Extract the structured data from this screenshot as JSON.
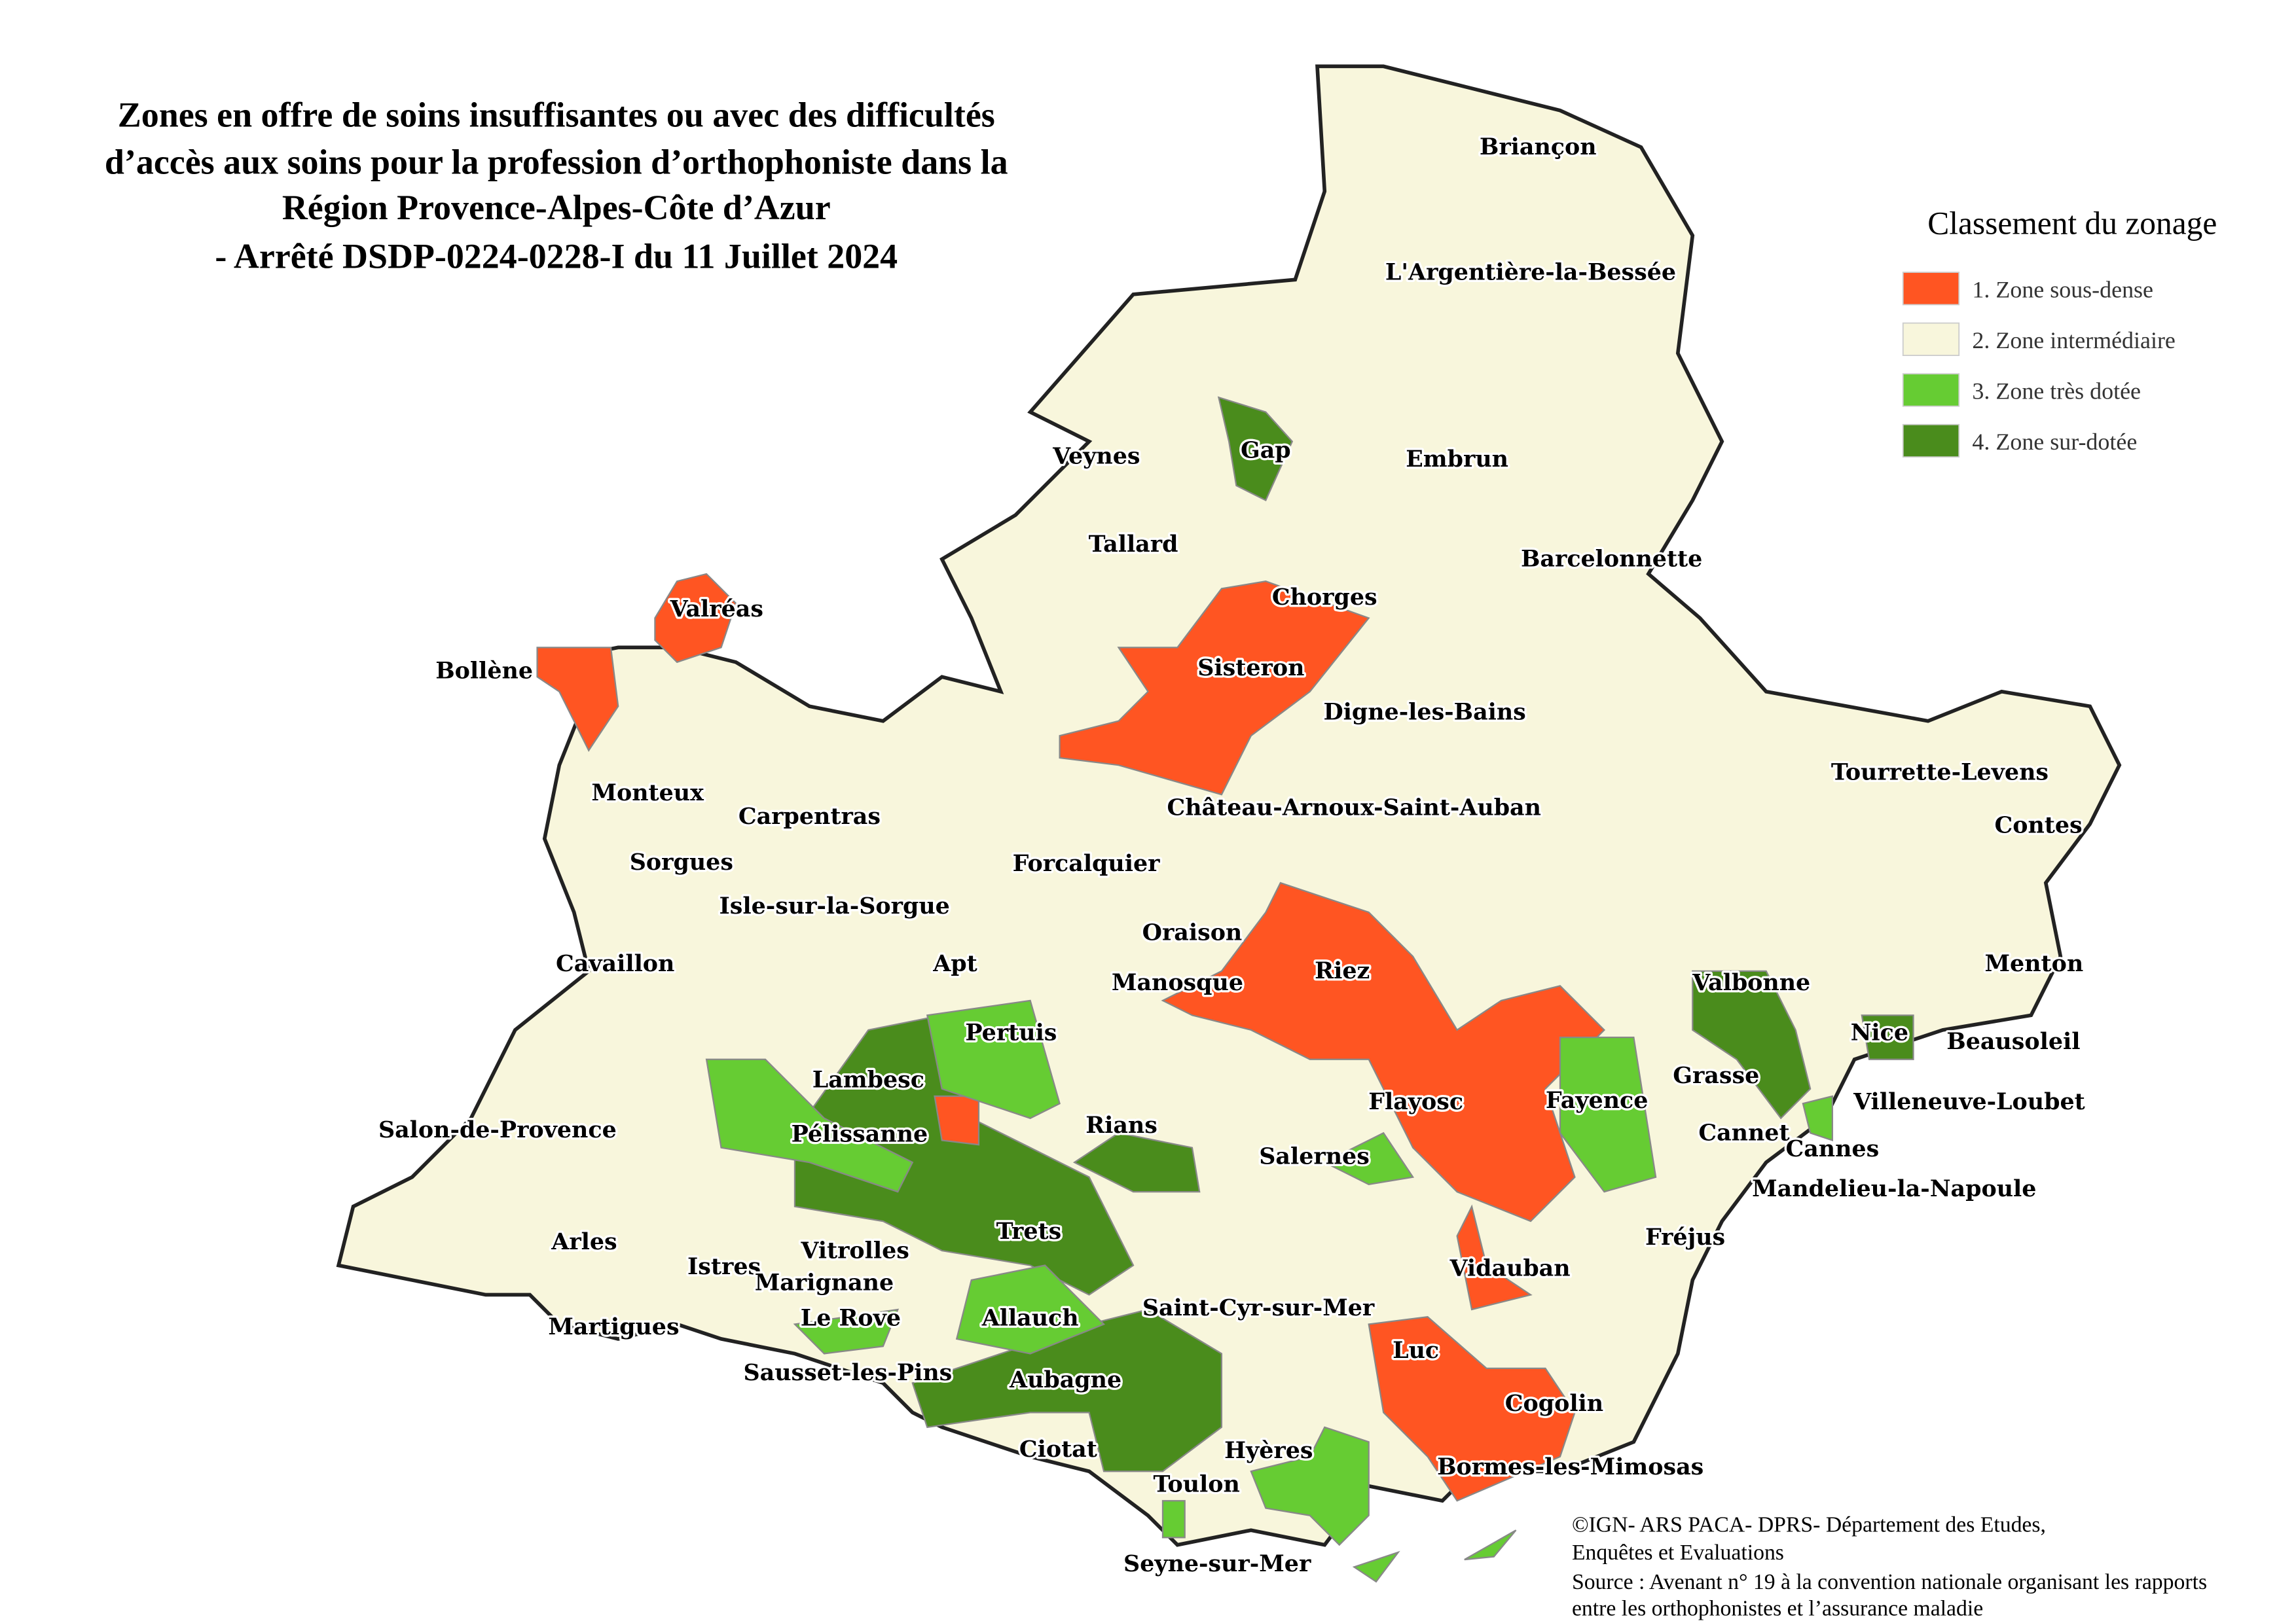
{
  "title": [
    "Zones en offre de soins insuffisantes ou avec des difficultés",
    "d’accès aux soins pour la profession d’orthophoniste dans la",
    "Région Provence-Alpes-Côte d’Azur",
    "- Arrêté DSDP-0224-0228-I du 11 Juillet 2024"
  ],
  "legend": {
    "title": "Classement du zonage",
    "items": [
      {
        "label": "1. Zone sous-dense",
        "color": "#ff5522"
      },
      {
        "label": "2. Zone intermédiaire",
        "color": "#f8f6dc"
      },
      {
        "label": "3. Zone très dotée",
        "color": "#66cc33"
      },
      {
        "label": "4. Zone sur-dotée",
        "color": "#4a8c1c"
      }
    ]
  },
  "places": [
    "Briançon",
    "L'Argentière-la-Bessée",
    "Veynes",
    "Gap",
    "Embrun",
    "Tallard",
    "Barcelonnette",
    "Chorges",
    "Valréas",
    "Bollène",
    "Sisteron",
    "Digne-les-Bains",
    "Tourrette-Levens",
    "Monteux",
    "Carpentras",
    "Château-Arnoux-Saint-Auban",
    "Contes",
    "Sorgues",
    "Forcalquier",
    "Isle-sur-la-Sorgue",
    "Oraison",
    "Cavaillon",
    "Apt",
    "Riez",
    "Valbonne",
    "Manosque",
    "Menton",
    "Pertuis",
    "Nice",
    "Beausoleil",
    "Lambesc",
    "Grasse",
    "Flayosc",
    "Fayence",
    "Villeneuve-Loubet",
    "Rians",
    "Salon-de-Provence",
    "Pélissanne",
    "Cannet",
    "Cannes",
    "Salernes",
    "Mandelieu-la-Napoule",
    "Trets",
    "Arles",
    "Fréjus",
    "Vitrolles",
    "Istres",
    "Vidauban",
    "Marignane",
    "Saint-Cyr-sur-Mer",
    "Allauch",
    "Le Rove",
    "Martigues",
    "Luc",
    "Sausset-les-Pins",
    "Aubagne",
    "Cogolin",
    "Ciotat",
    "Hyères",
    "Bormes-les-Mimosas",
    "Toulon",
    "Seyne-sur-Mer"
  ],
  "source": [
    "©IGN- ARS PACA- DPRS- Département des Etudes,",
    "Enquêtes et Evaluations",
    "Source : Avenant n° 19 à la convention nationale organisant les rapports",
    "entre les orthophonistes et l’assurance maladie"
  ]
}
